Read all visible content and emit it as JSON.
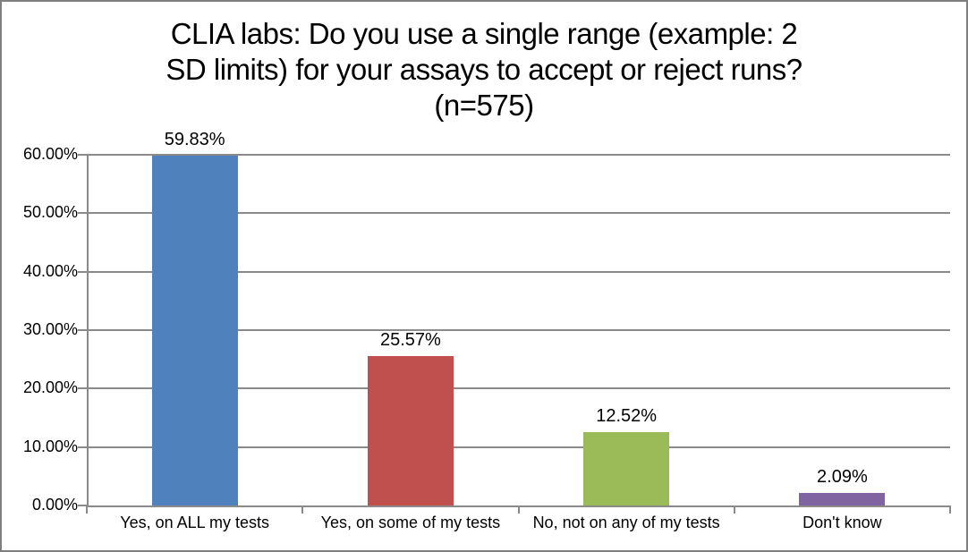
{
  "window": {
    "background": "#ffffff",
    "border_color": "#7f7f7f"
  },
  "chart_data": {
    "type": "bar",
    "title": "CLIA labs: Do you use a single range (example: 2 SD limits) for your assays to accept or reject runs? (n=575)",
    "title_lines": [
      "CLIA labs: Do you use a single range (example: 2",
      "SD limits) for your assays to accept or reject runs?",
      "(n=575)"
    ],
    "xlabel": "",
    "ylabel": "",
    "legend_position": "none",
    "categories": [
      "Yes, on ALL my tests",
      "Yes, on some of my tests",
      "No, not on any of my tests",
      "Don't know"
    ],
    "values": [
      59.83,
      25.57,
      12.52,
      2.09
    ],
    "data_labels": [
      "59.83%",
      "25.57%",
      "12.52%",
      "2.09%"
    ],
    "bar_colors": [
      "#4F81BD",
      "#C0504D",
      "#9BBB59",
      "#8064A2"
    ],
    "y_axis": {
      "min": 0,
      "max": 60,
      "tick_step": 10,
      "tick_labels": [
        "0.00%",
        "10.00%",
        "20.00%",
        "30.00%",
        "40.00%",
        "50.00%",
        "60.00%"
      ]
    },
    "grid": {
      "horizontal": true,
      "color": "#8a8a8a"
    },
    "axis_color": "#8a8a8a",
    "text_color": "#000000"
  }
}
